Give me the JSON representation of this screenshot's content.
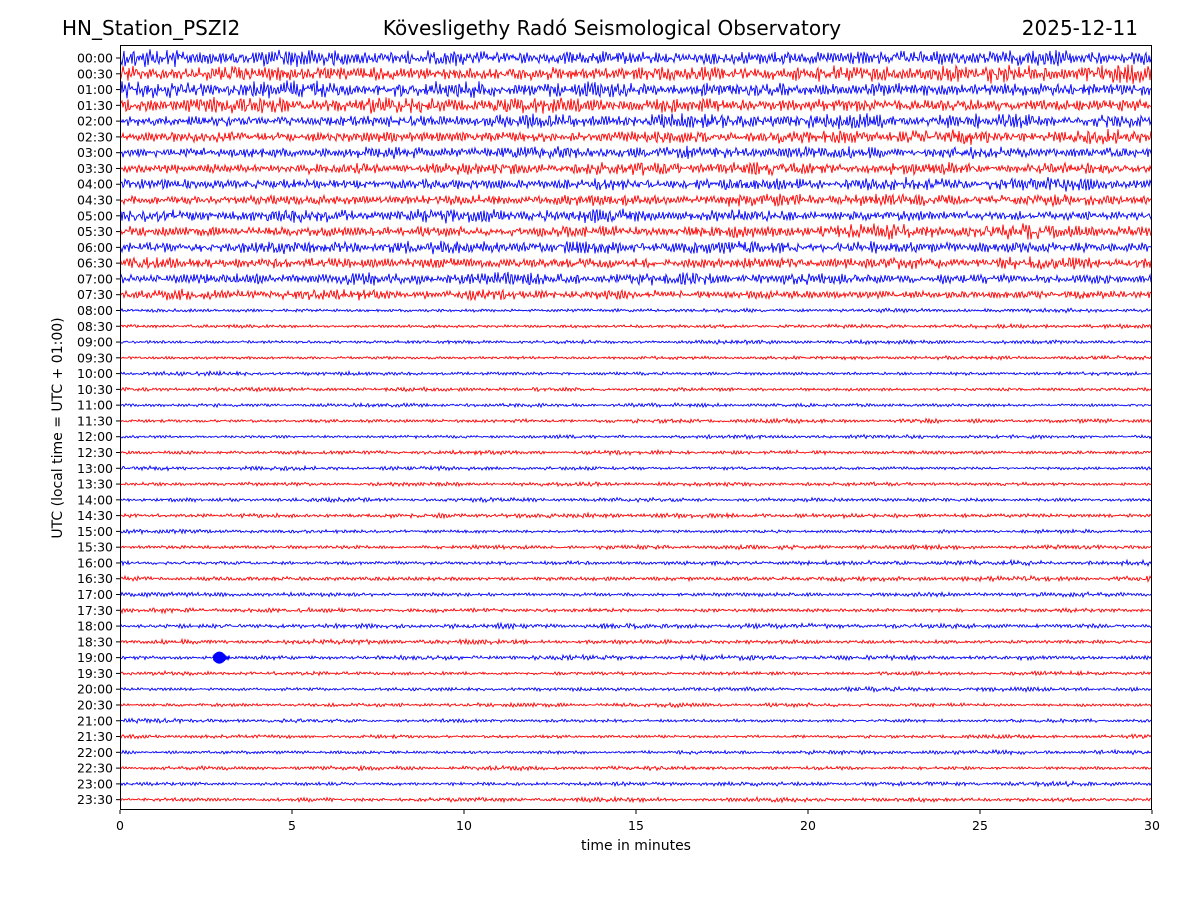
{
  "header": {
    "station": "HN_Station_PSZI2",
    "observatory": "Kövesligethy Radó Seismological Observatory",
    "date": "2025-12-11"
  },
  "chart_data": {
    "type": "line",
    "xlabel": "time in minutes",
    "ylabel": "UTC (local time = UTC + 01:00)",
    "xlim": [
      0,
      30
    ],
    "x_ticks": [
      "0",
      "5",
      "10",
      "15",
      "20",
      "25",
      "30"
    ],
    "row_labels": [
      "00:00",
      "00:30",
      "01:00",
      "01:30",
      "02:00",
      "02:30",
      "03:00",
      "03:30",
      "04:00",
      "04:30",
      "05:00",
      "05:30",
      "06:00",
      "06:30",
      "07:00",
      "07:30",
      "08:00",
      "08:30",
      "09:00",
      "09:30",
      "10:00",
      "10:30",
      "11:00",
      "11:30",
      "12:00",
      "12:30",
      "13:00",
      "13:30",
      "14:00",
      "14:30",
      "15:00",
      "15:30",
      "16:00",
      "16:30",
      "17:00",
      "17:30",
      "18:00",
      "18:30",
      "19:00",
      "19:30",
      "20:00",
      "20:30",
      "21:00",
      "21:30",
      "22:00",
      "22:30",
      "23:00",
      "23:30"
    ],
    "trace_colors": [
      "#0000ff",
      "#ff0000"
    ],
    "row_amplitudes": [
      2.6,
      2.6,
      2.4,
      2.3,
      2.1,
      2.0,
      1.8,
      1.8,
      1.9,
      1.8,
      1.9,
      2.0,
      1.9,
      1.9,
      1.8,
      1.5,
      0.6,
      0.6,
      0.55,
      0.55,
      0.6,
      0.6,
      0.55,
      0.6,
      0.55,
      0.6,
      0.6,
      0.6,
      0.6,
      0.7,
      0.6,
      0.65,
      0.7,
      0.75,
      0.7,
      0.7,
      0.75,
      0.7,
      0.7,
      0.65,
      0.6,
      0.6,
      0.6,
      0.6,
      0.6,
      0.6,
      0.65,
      0.65
    ],
    "grid": false
  }
}
